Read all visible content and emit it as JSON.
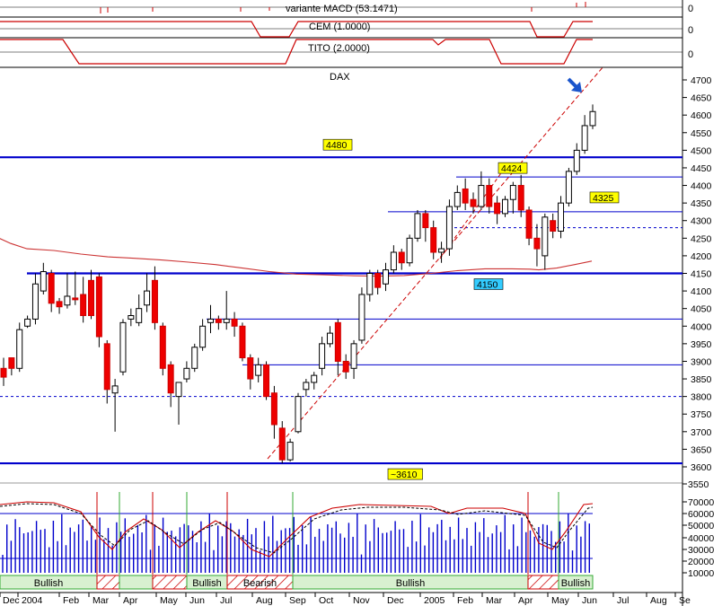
{
  "panels": {
    "macd": {
      "label": "variante MACD (53.1471)",
      "right_value": "0"
    },
    "cem": {
      "label": "CEM (1.0000)",
      "right_value": "0"
    },
    "tito": {
      "label": "TITO (2.0000)",
      "right_value": "0"
    }
  },
  "chart_data": {
    "type": "candlestick",
    "title": "DAX",
    "ylim": [
      3600,
      4700
    ],
    "y_ticks": [
      "4700",
      "4650",
      "4600",
      "4550",
      "4500",
      "4450",
      "4400",
      "4350",
      "4300",
      "4250",
      "4200",
      "4150",
      "4100",
      "4050",
      "4000",
      "3950",
      "3900",
      "3850",
      "3800",
      "3750",
      "3700",
      "3650",
      "3600"
    ],
    "x_labels": [
      "Dec",
      "2004",
      "Feb",
      "Mar",
      "Apr",
      "May",
      "Jun",
      "Jul",
      "Aug",
      "Sep",
      "Oct",
      "Nov",
      "Dec",
      "2005",
      "Feb",
      "Mar",
      "Apr",
      "May",
      "Jun",
      "Jul",
      "Aug",
      "Se"
    ],
    "price_tags": [
      {
        "text": "4480",
        "value": 4480,
        "color": "#ffff00"
      },
      {
        "text": "4424",
        "value": 4424,
        "color": "#ffff00"
      },
      {
        "text": "4325",
        "value": 4325,
        "color": "#ffff00"
      },
      {
        "text": "4150",
        "value": 4150,
        "color": "#33ccff"
      },
      {
        "text": "~3610",
        "value": 3610,
        "color": "#ffff00"
      }
    ],
    "horizontal_levels": [
      {
        "value": 4480,
        "style": "thick",
        "color": "#0000cc"
      },
      {
        "value": 4424,
        "style": "thin",
        "color": "#0000cc"
      },
      {
        "value": 4325,
        "style": "thin",
        "color": "#0000cc"
      },
      {
        "value": 4280,
        "style": "dashed",
        "color": "#0000cc"
      },
      {
        "value": 4150,
        "style": "thick",
        "color": "#0000cc"
      },
      {
        "value": 4020,
        "style": "thin",
        "color": "#0000cc"
      },
      {
        "value": 3890,
        "style": "thin",
        "color": "#0000cc"
      },
      {
        "value": 3800,
        "style": "dashed",
        "color": "#0000cc"
      },
      {
        "value": 3610,
        "style": "thick",
        "color": "#0000cc"
      }
    ],
    "candles": [
      [
        3880,
        3910,
        3855,
        3830
      ],
      [
        3910,
        3905,
        3880,
        3860
      ],
      [
        3880,
        4010,
        3990,
        3870
      ],
      [
        4000,
        4030,
        4020,
        3995
      ],
      [
        4020,
        4150,
        4120,
        4005
      ],
      [
        4100,
        4180,
        4155,
        4090
      ],
      [
        4150,
        4160,
        4065,
        4040
      ],
      [
        4070,
        4080,
        4055,
        4035
      ],
      [
        4060,
        4150,
        4085,
        4050
      ],
      [
        4080,
        4155,
        4075,
        4060
      ],
      [
        4090,
        4140,
        4030,
        4010
      ],
      [
        4130,
        4160,
        4030,
        4020
      ],
      [
        4140,
        4150,
        3970,
        3940
      ],
      [
        3950,
        3960,
        3820,
        3780
      ],
      [
        3810,
        3850,
        3830,
        3700
      ],
      [
        3870,
        4020,
        4010,
        3860
      ],
      [
        4020,
        4050,
        4030,
        4000
      ],
      [
        4010,
        4090,
        4050,
        4000
      ],
      [
        4060,
        4150,
        4100,
        4040
      ],
      [
        4130,
        4170,
        4010,
        3990
      ],
      [
        4000,
        4010,
        3880,
        3860
      ],
      [
        3890,
        3900,
        3810,
        3770
      ],
      [
        3800,
        3830,
        3840,
        3720
      ],
      [
        3850,
        3900,
        3880,
        3840
      ],
      [
        3880,
        3950,
        3940,
        3870
      ],
      [
        3940,
        4020,
        4000,
        3930
      ],
      [
        4010,
        4060,
        4020,
        3980
      ],
      [
        4020,
        4030,
        4010,
        3990
      ],
      [
        4010,
        4100,
        4020,
        3990
      ],
      [
        4020,
        4040,
        4000,
        3970
      ],
      [
        4000,
        4010,
        3910,
        3900
      ],
      [
        3910,
        3920,
        3850,
        3820
      ],
      [
        3860,
        3910,
        3890,
        3840
      ],
      [
        3890,
        3900,
        3800,
        3790
      ],
      [
        3810,
        3830,
        3720,
        3680
      ],
      [
        3710,
        3730,
        3620,
        3610
      ],
      [
        3620,
        3680,
        3670,
        3615
      ],
      [
        3700,
        3810,
        3800,
        3695
      ],
      [
        3820,
        3850,
        3840,
        3800
      ],
      [
        3840,
        3870,
        3860,
        3820
      ],
      [
        3880,
        3970,
        3950,
        3860
      ],
      [
        3950,
        4000,
        3980,
        3940
      ],
      [
        4010,
        4020,
        3900,
        3860
      ],
      [
        3900,
        3920,
        3870,
        3850
      ],
      [
        3880,
        3960,
        3950,
        3850
      ],
      [
        3960,
        4110,
        4090,
        3950
      ],
      [
        4090,
        4160,
        4150,
        4070
      ],
      [
        4150,
        4160,
        4110,
        4090
      ],
      [
        4120,
        4180,
        4160,
        4100
      ],
      [
        4160,
        4230,
        4210,
        4150
      ],
      [
        4210,
        4220,
        4180,
        4160
      ],
      [
        4180,
        4260,
        4250,
        4170
      ],
      [
        4250,
        4330,
        4320,
        4240
      ],
      [
        4320,
        4330,
        4280,
        4240
      ],
      [
        4280,
        4300,
        4210,
        4190
      ],
      [
        4210,
        4240,
        4220,
        4180
      ],
      [
        4220,
        4360,
        4340,
        4200
      ],
      [
        4340,
        4400,
        4380,
        4330
      ],
      [
        4390,
        4420,
        4350,
        4330
      ],
      [
        4360,
        4380,
        4340,
        4320
      ],
      [
        4340,
        4440,
        4400,
        4330
      ],
      [
        4400,
        4420,
        4340,
        4320
      ],
      [
        4350,
        4370,
        4320,
        4290
      ],
      [
        4320,
        4370,
        4360,
        4310
      ],
      [
        4360,
        4410,
        4400,
        4320
      ],
      [
        4400,
        4430,
        4330,
        4310
      ],
      [
        4330,
        4340,
        4250,
        4230
      ],
      [
        4250,
        4290,
        4220,
        4170
      ],
      [
        4200,
        4320,
        4310,
        4160
      ],
      [
        4300,
        4320,
        4270,
        4250
      ],
      [
        4270,
        4370,
        4350,
        4250
      ],
      [
        4350,
        4450,
        4440,
        4340
      ],
      [
        4440,
        4520,
        4500,
        4430
      ],
      [
        4500,
        4600,
        4570,
        4490
      ],
      [
        4570,
        4630,
        4610,
        4560
      ]
    ],
    "ma_curve": [
      [
        -1,
        4250
      ],
      [
        12,
        4235
      ],
      [
        30,
        4220
      ],
      [
        60,
        4215
      ],
      [
        90,
        4205
      ],
      [
        120,
        4197
      ],
      [
        150,
        4193
      ],
      [
        180,
        4188
      ],
      [
        210,
        4182
      ],
      [
        240,
        4175
      ],
      [
        270,
        4165
      ],
      [
        300,
        4155
      ],
      [
        330,
        4148
      ],
      [
        360,
        4146
      ],
      [
        395,
        4143
      ],
      [
        420,
        4142
      ],
      [
        450,
        4144
      ],
      [
        480,
        4150
      ],
      [
        510,
        4158
      ],
      [
        540,
        4163
      ],
      [
        570,
        4163
      ],
      [
        590,
        4162
      ],
      [
        600,
        4160
      ],
      [
        620,
        4165
      ],
      [
        640,
        4175
      ],
      [
        659,
        4185
      ]
    ],
    "oscillator": {
      "legend_ticks": [
        "3550",
        "70000",
        "60000",
        "50000",
        "40000",
        "30000",
        "20000",
        "10000"
      ],
      "regions": [
        {
          "text": "Bullish",
          "from": 0,
          "to": 108,
          "hatched": false
        },
        {
          "text": "",
          "from": 108,
          "to": 133,
          "hatched": true
        },
        {
          "text": "",
          "from": 133,
          "to": 170,
          "hatched": false
        },
        {
          "text": "",
          "from": 170,
          "to": 208,
          "hatched": true
        },
        {
          "text": "Bullish",
          "from": 208,
          "to": 253,
          "hatched": false
        },
        {
          "text": "Bearish",
          "from": 253,
          "to": 326,
          "hatched": true
        },
        {
          "text": "Bullish",
          "from": 326,
          "to": 588,
          "hatched": false
        },
        {
          "text": "",
          "from": 588,
          "to": 622,
          "hatched": true
        },
        {
          "text": "Bullish",
          "from": 622,
          "to": 660,
          "hatched": false
        }
      ]
    }
  }
}
